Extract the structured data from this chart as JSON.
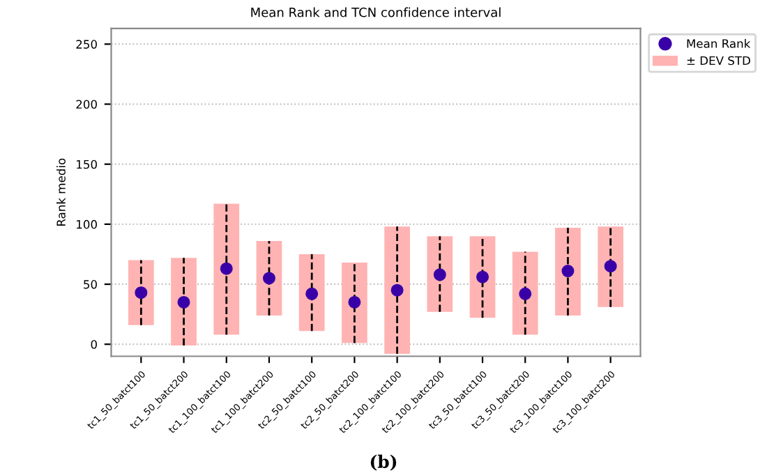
{
  "chart_data": {
    "type": "bar",
    "title": "Mean Rank and TCN confidence interval",
    "ylabel": "Rank medio",
    "categories": [
      "tc1_50_batct100",
      "tc1_50_batct200",
      "tc1_100_batct100",
      "tc1_100_batct200",
      "tc2_50_batct100",
      "tc2_50_batct200",
      "tc2_100_batct100",
      "tc2_100_batct200",
      "tc3_50_batct100",
      "tc3_50_batct200",
      "tc3_100_batct100",
      "tc3_100_batct200"
    ],
    "series": [
      {
        "name": "Mean Rank",
        "type": "scatter",
        "color": "#3a00a8",
        "marker": "circle",
        "values": [
          43,
          35,
          63,
          55,
          42,
          35,
          45,
          58,
          56,
          42,
          61,
          65
        ],
        "errors": [
          [
            16,
            70
          ],
          [
            -1,
            72
          ],
          [
            8,
            117
          ],
          [
            24,
            86
          ],
          [
            11,
            75
          ],
          [
            1,
            68
          ],
          [
            -8,
            98
          ],
          [
            27,
            90
          ],
          [
            22,
            90
          ],
          [
            8,
            77
          ],
          [
            24,
            97
          ],
          [
            31,
            98
          ]
        ],
        "line_style": "dashed"
      },
      {
        "name": "± DEV STD",
        "color": "#ffb3b3",
        "base": [
          16,
          -1,
          8,
          24,
          11,
          1,
          -8,
          27,
          22,
          8,
          24,
          31
        ],
        "values": [
          54,
          73,
          109,
          62,
          64,
          67,
          106,
          63,
          68,
          69,
          73,
          67
        ]
      }
    ],
    "ylim": [
      -10,
      263
    ],
    "yticks": [
      0,
      50,
      100,
      150,
      200,
      250
    ],
    "grid": "y",
    "legend": "top right",
    "annotations": [
      "(b)"
    ]
  }
}
